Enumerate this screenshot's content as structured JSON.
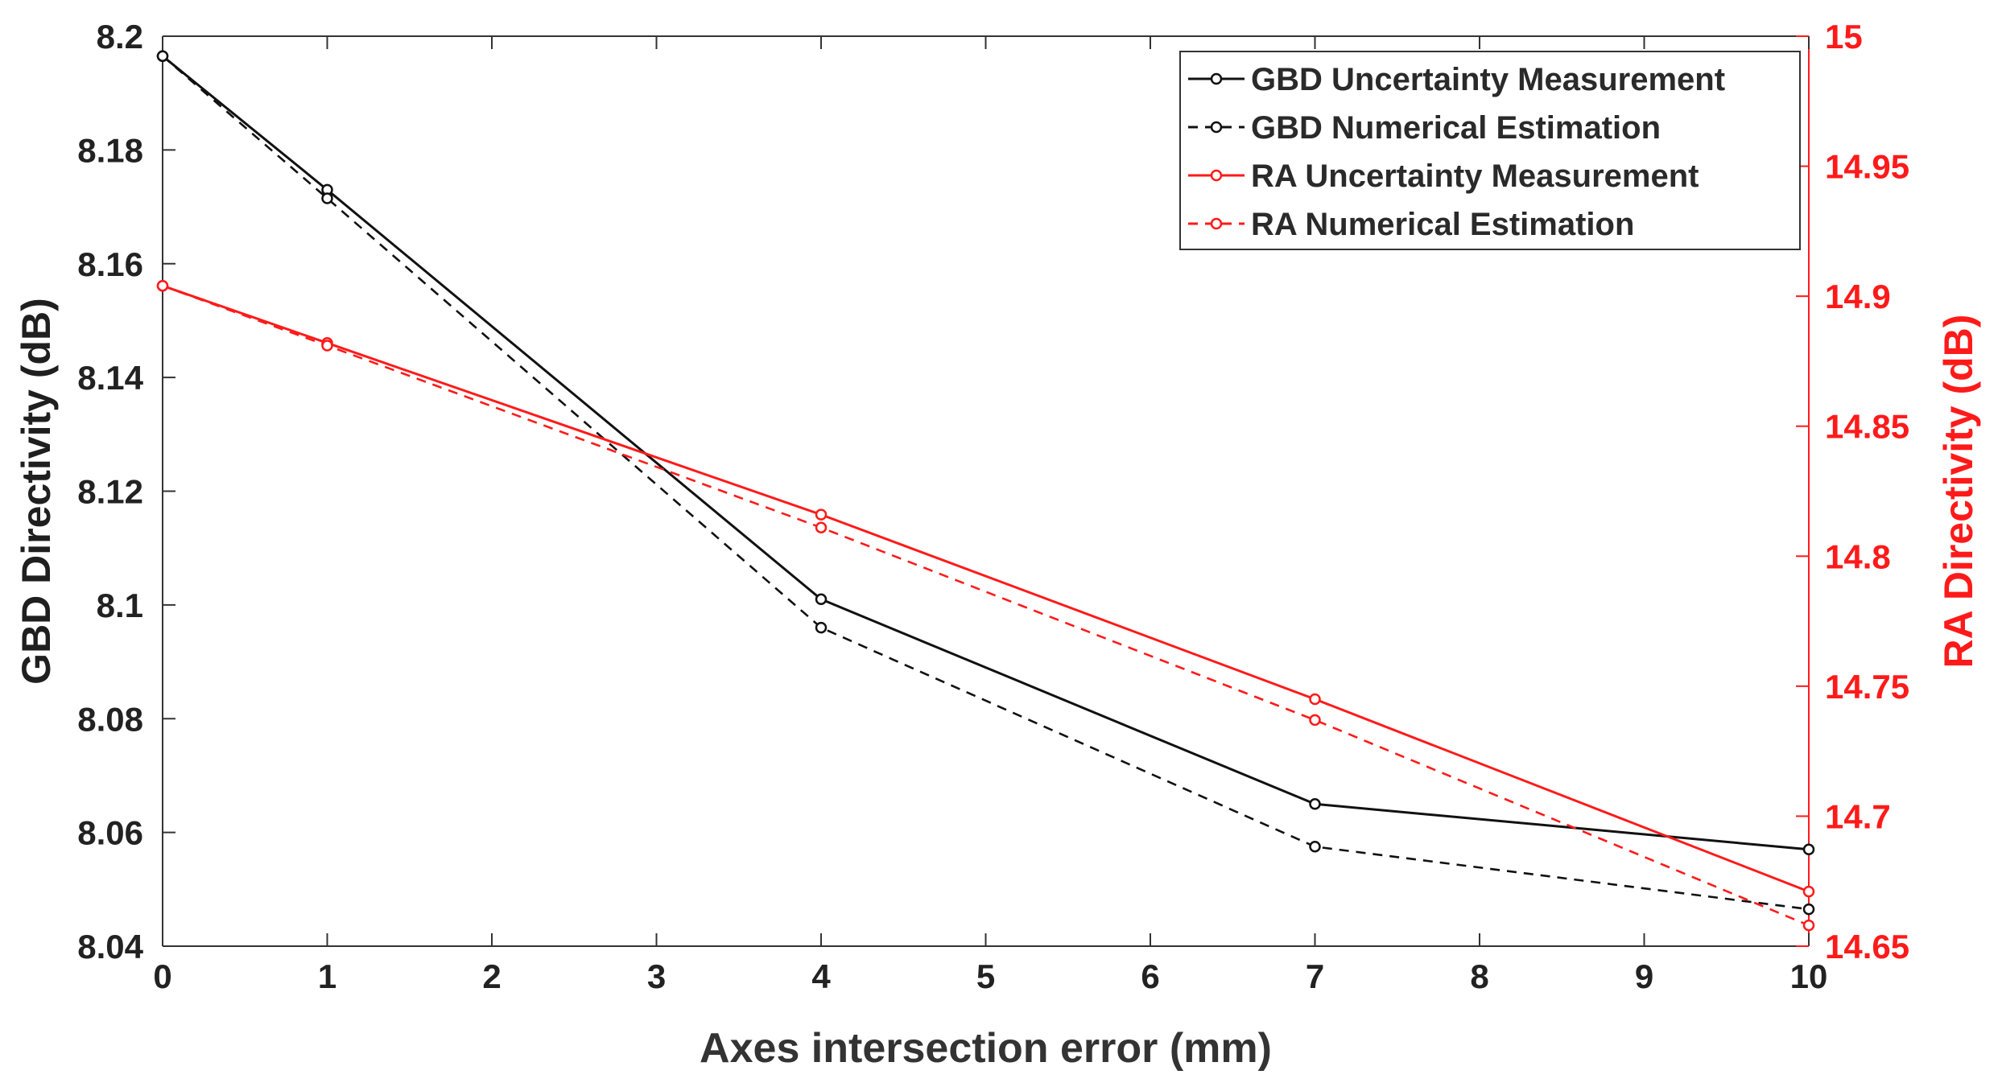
{
  "chart_data": {
    "type": "line",
    "title": "",
    "xlabel": "Axes intersection error (mm)",
    "ylabel_left": "GBD Directivity (dB)",
    "ylabel_right": "RA Directivity (dB)",
    "x": [
      0,
      1,
      4,
      7,
      10
    ],
    "xlim": [
      0,
      10
    ],
    "ylim_left": [
      8.04,
      8.2
    ],
    "ylim_right": [
      14.65,
      15
    ],
    "x_ticks": [
      "0",
      "1",
      "2",
      "3",
      "4",
      "5",
      "6",
      "7",
      "8",
      "9",
      "10"
    ],
    "y_ticks_left": [
      "8.04",
      "8.06",
      "8.08",
      "8.1",
      "8.12",
      "8.14",
      "8.16",
      "8.18",
      "8.2"
    ],
    "y_ticks_right": [
      "14.65",
      "14.7",
      "14.75",
      "14.8",
      "14.85",
      "14.9",
      "14.95",
      "15"
    ],
    "grid": false,
    "legend_position": "top-right",
    "series": [
      {
        "name": "GBD Uncertainty Measurement",
        "axis": "left",
        "color": "#111111",
        "dash": "solid",
        "values": [
          8.1965,
          8.173,
          8.101,
          8.065,
          8.057
        ]
      },
      {
        "name": "GBD Numerical Estimation",
        "axis": "left",
        "color": "#111111",
        "dash": "dashed",
        "values": [
          8.1965,
          8.1715,
          8.096,
          8.0575,
          8.0465
        ]
      },
      {
        "name": "RA Uncertainty Measurement",
        "axis": "right",
        "color": "#ff1a1a",
        "dash": "solid",
        "values": [
          14.904,
          14.882,
          14.816,
          14.745,
          14.671
        ]
      },
      {
        "name": "RA Numerical Estimation",
        "axis": "right",
        "color": "#ff1a1a",
        "dash": "dashed",
        "values": [
          14.904,
          14.881,
          14.811,
          14.737,
          14.658
        ]
      }
    ]
  }
}
